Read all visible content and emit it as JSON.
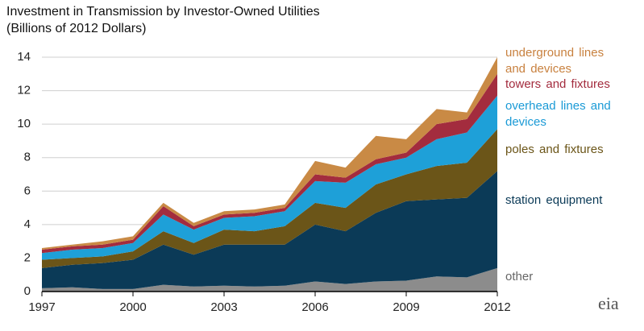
{
  "chart_data": {
    "type": "area",
    "stacked": true,
    "title": "Investment in Transmission by Investor-Owned Utilities",
    "subtitle": "(Billions of 2012 Dollars)",
    "x": [
      1997,
      1998,
      1999,
      2000,
      2001,
      2002,
      2003,
      2004,
      2005,
      2006,
      2007,
      2008,
      2009,
      2010,
      2011,
      2012
    ],
    "xlim": [
      1997,
      2012
    ],
    "xticks": [
      1997,
      2000,
      2003,
      2006,
      2009,
      2012
    ],
    "ylim": [
      0,
      14
    ],
    "yticks": [
      0,
      2,
      4,
      6,
      8,
      10,
      12,
      14
    ],
    "grid": true,
    "series": [
      {
        "name": "other",
        "color": "#8c8c8c",
        "label_color": "#666666",
        "values": [
          0.2,
          0.25,
          0.15,
          0.15,
          0.4,
          0.3,
          0.35,
          0.3,
          0.35,
          0.6,
          0.45,
          0.6,
          0.65,
          0.9,
          0.85,
          1.4
        ]
      },
      {
        "name": "station equipment",
        "color": "#0b3a57",
        "label_color": "#0b3a57",
        "values": [
          1.2,
          1.35,
          1.55,
          1.75,
          2.4,
          1.9,
          2.45,
          2.5,
          2.45,
          3.4,
          3.15,
          4.1,
          4.75,
          4.6,
          4.75,
          5.8
        ]
      },
      {
        "name": "poles and fixtures",
        "color": "#6b5518",
        "label_color": "#6b5518",
        "values": [
          0.5,
          0.4,
          0.4,
          0.5,
          0.8,
          0.7,
          0.9,
          0.8,
          1.1,
          1.3,
          1.4,
          1.7,
          1.6,
          2.0,
          2.1,
          2.5
        ]
      },
      {
        "name": "overhead lines and devices",
        "color": "#1ea0d8",
        "label_color": "#1a9ad6",
        "values": [
          0.4,
          0.5,
          0.5,
          0.5,
          1.0,
          0.8,
          0.7,
          0.9,
          0.9,
          1.3,
          1.5,
          1.2,
          1.0,
          1.6,
          1.8,
          2.0
        ]
      },
      {
        "name": "towers and fixtures",
        "color": "#a32c3e",
        "label_color": "#a32c3e",
        "values": [
          0.2,
          0.2,
          0.2,
          0.2,
          0.5,
          0.2,
          0.2,
          0.2,
          0.2,
          0.4,
          0.3,
          0.3,
          0.3,
          0.9,
          0.8,
          1.3
        ]
      },
      {
        "name": "underground lines and devices",
        "color": "#c98a45",
        "label_color": "#c8813f",
        "values": [
          0.1,
          0.1,
          0.2,
          0.2,
          0.2,
          0.2,
          0.2,
          0.2,
          0.2,
          0.8,
          0.6,
          1.4,
          0.8,
          0.9,
          0.4,
          1.0
        ]
      }
    ]
  },
  "logo_text": "eia"
}
